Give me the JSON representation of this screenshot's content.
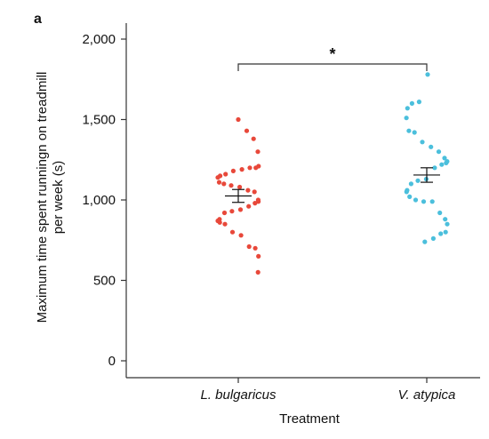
{
  "panel_label": "a",
  "chart_data": {
    "type": "scatter",
    "title": "",
    "xlabel": "Treatment",
    "ylabel_lines": [
      "Maximum time spent runningn on treadmill",
      "per week (s)"
    ],
    "ylim": [
      0,
      2000
    ],
    "yticks": [
      0,
      500,
      1000,
      1500,
      2000
    ],
    "ytick_labels": [
      "0",
      "500",
      "1,000",
      "1,500",
      "2,000"
    ],
    "grid": false,
    "significance": "*",
    "groups": [
      {
        "name": "L. bulgaricus",
        "color": "#e8483a",
        "mean": 1025,
        "sem": 40,
        "values": [
          1500,
          1430,
          1380,
          1300,
          1210,
          1200,
          1200,
          1190,
          1180,
          1160,
          1150,
          1140,
          1110,
          1100,
          1090,
          1080,
          1060,
          1050,
          1000,
          990,
          980,
          960,
          940,
          930,
          920,
          880,
          870,
          860,
          850,
          800,
          780,
          710,
          700,
          650,
          550
        ]
      },
      {
        "name": "V. atypica",
        "color": "#4bbfdc",
        "mean": 1155,
        "sem": 45,
        "values": [
          1780,
          1610,
          1600,
          1570,
          1510,
          1430,
          1420,
          1360,
          1330,
          1300,
          1260,
          1240,
          1230,
          1220,
          1200,
          1130,
          1120,
          1100,
          1060,
          1050,
          1020,
          1000,
          990,
          990,
          920,
          880,
          850,
          800,
          790,
          760,
          740
        ]
      }
    ]
  }
}
